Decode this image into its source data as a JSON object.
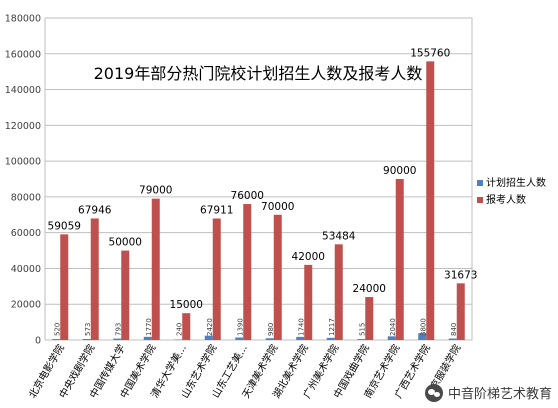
{
  "chart_data": {
    "type": "bar",
    "title": "2019年部分热门院校计划招生人数及报考人数",
    "xlabel": "",
    "ylabel": "",
    "ylim": [
      0,
      180000
    ],
    "y_ticks": [
      "0",
      "20000",
      "40000",
      "60000",
      "80000",
      "100000",
      "120000",
      "140000",
      "160000",
      "180000"
    ],
    "grid": true,
    "legend_position": "right",
    "categories": [
      "北京电影学院",
      "中央戏剧学院",
      "中国传媒大学",
      "中国美术学院",
      "清华大学美...",
      "山东艺术学院",
      "山东工艺美...",
      "天津美术学院",
      "湖北美术学院",
      "广州美术学院",
      "中国戏曲学院",
      "南京艺术学院",
      "广西艺术学院",
      "北京服装学院"
    ],
    "series": [
      {
        "name": "计划招生人数",
        "color": "#4f81bd",
        "values": [
          520,
          573,
          793,
          1770,
          240,
          2420,
          1390,
          980,
          1740,
          1217,
          515,
          2040,
          3800,
          840
        ],
        "labels": [
          "520",
          "573",
          "793",
          "1770",
          "240",
          "2420",
          "1390",
          "980",
          "1740",
          "1217",
          "515",
          "2040",
          "3800",
          "840"
        ]
      },
      {
        "name": "报考人数",
        "color": "#c0504d",
        "values": [
          59059,
          67946,
          50000,
          79000,
          15000,
          67911,
          76000,
          70000,
          42000,
          53484,
          24000,
          90000,
          155760,
          31673
        ],
        "labels": [
          "59059",
          "67946",
          "50000",
          "79000",
          "15000",
          "67911",
          "76000",
          "70000",
          "42000",
          "53484",
          "24000",
          "90000",
          "155760",
          "31673"
        ]
      }
    ]
  },
  "watermark": {
    "text": "中音阶梯艺术教育",
    "icon": "wechat-icon"
  }
}
